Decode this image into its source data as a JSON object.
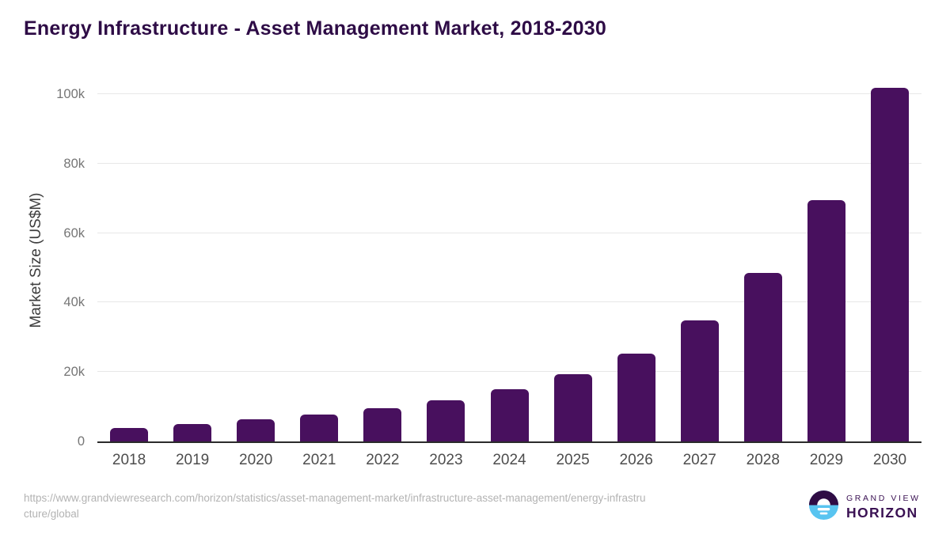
{
  "title": {
    "text": "Energy Infrastructure - Asset Management Market, 2018-2030",
    "color": "#2E0C46"
  },
  "chart_data": {
    "type": "bar",
    "title": "Energy Infrastructure - Asset Management Market, 2018-2030",
    "categories": [
      "2018",
      "2019",
      "2020",
      "2021",
      "2022",
      "2023",
      "2024",
      "2025",
      "2026",
      "2027",
      "2028",
      "2029",
      "2030"
    ],
    "values": [
      3900,
      5000,
      6300,
      7700,
      9500,
      11800,
      15000,
      19400,
      25300,
      34800,
      48400,
      69400,
      101800
    ],
    "units": "US$M",
    "xlabel": "",
    "ylabel": "Market Size (US$M)",
    "ylim": [
      0,
      104300
    ],
    "y_ticks": [
      {
        "value": 0,
        "label": "0"
      },
      {
        "value": 20000,
        "label": "20k"
      },
      {
        "value": 40000,
        "label": "40k"
      },
      {
        "value": 60000,
        "label": "60k"
      },
      {
        "value": 80000,
        "label": "80k"
      },
      {
        "value": 100000,
        "label": "100k"
      }
    ],
    "grid": "horizontal",
    "legend": "none",
    "bar_color": "#48105E"
  },
  "axis_colors": {
    "y_tick_label": "#757575",
    "x_tick_label": "#4d4d4d",
    "axis_title": "#3d3d3d",
    "gridline": "#e7e7e7",
    "baseline": "#2b2b2b"
  },
  "footer": {
    "url_lines": [
      "https://www.grandviewresearch.com/horizon/statistics/asset-management-market/infrastructure-asset-management/energy-infrastru",
      "cture/global"
    ],
    "full_url": "https://www.grandviewresearch.com/horizon/statistics/asset-management-market/infrastructure-asset-management/energy-infrastructure/global",
    "text_color": "#b3b3b3"
  },
  "logo": {
    "brand_line1": "GRAND VIEW",
    "brand_line2": "HORIZON",
    "text_color": "#3A1153",
    "icon_top_color": "#2F0C44",
    "icon_bottom_color": "#58C4F0"
  }
}
